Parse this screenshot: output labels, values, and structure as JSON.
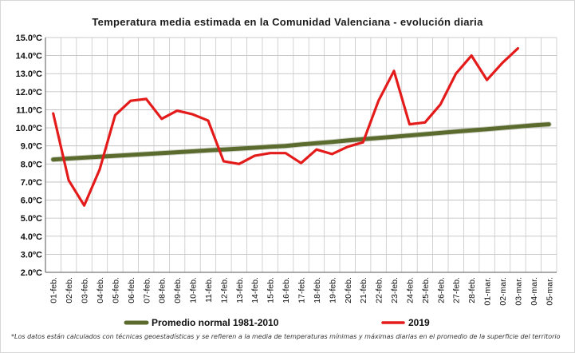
{
  "chart_data": {
    "type": "line",
    "title": "Temperatura media estimada en la Comunidad Valenciana - evolución diaria",
    "categories": [
      "01-feb.",
      "02-feb.",
      "03-feb.",
      "04-feb.",
      "05-feb.",
      "06-feb.",
      "07-feb.",
      "08-feb.",
      "09-feb.",
      "10-feb.",
      "11-feb.",
      "12-feb.",
      "13-feb.",
      "14-feb.",
      "15-feb.",
      "16-feb.",
      "17-feb.",
      "18-feb.",
      "19-feb.",
      "20-feb.",
      "21-feb.",
      "22-feb.",
      "23-feb.",
      "24-feb.",
      "25-feb.",
      "26-feb.",
      "27-feb.",
      "28-feb.",
      "01-mar.",
      "02-mar.",
      "03-mar.",
      "04-mar.",
      "05-mar."
    ],
    "y_ticks": [
      "2.0ºC",
      "3.0ºC",
      "4.0ºC",
      "5.0ºC",
      "6.0ºC",
      "7.0ºC",
      "8.0ºC",
      "9.0ºC",
      "10.0ºC",
      "11.0ºC",
      "12.0ºC",
      "13.0ºC",
      "14.0ºC",
      "15.0ºC"
    ],
    "ylim": [
      2,
      15
    ],
    "grid": true,
    "legend_position": "bottom",
    "series": [
      {
        "name": "Promedio normal 1981-2010",
        "color": "#5b6b2e",
        "values": [
          8.25,
          8.3,
          8.35,
          8.4,
          8.45,
          8.5,
          8.55,
          8.6,
          8.65,
          8.7,
          8.75,
          8.8,
          8.85,
          8.9,
          8.95,
          9.0,
          9.08,
          9.15,
          9.22,
          9.3,
          9.37,
          9.44,
          9.51,
          9.58,
          9.65,
          9.72,
          9.79,
          9.86,
          9.93,
          10.0,
          10.07,
          10.14,
          10.2
        ]
      },
      {
        "name": "2019",
        "color": "#e41b1b",
        "values": [
          10.8,
          7.1,
          5.7,
          7.7,
          10.7,
          11.5,
          11.6,
          10.5,
          10.95,
          10.75,
          10.4,
          8.15,
          8.0,
          8.45,
          8.6,
          8.6,
          8.05,
          8.8,
          8.55,
          8.95,
          9.2,
          11.5,
          13.15,
          10.2,
          10.3,
          11.3,
          13.0,
          14.0,
          12.65,
          13.6,
          14.4,
          null,
          null
        ]
      }
    ],
    "footnote": "*Los datos están calculados con técnicas geoestadísticas y se refieren a la media de temperaturas mínimas y máximas diarias en el promedio de la superficie del territorio"
  }
}
